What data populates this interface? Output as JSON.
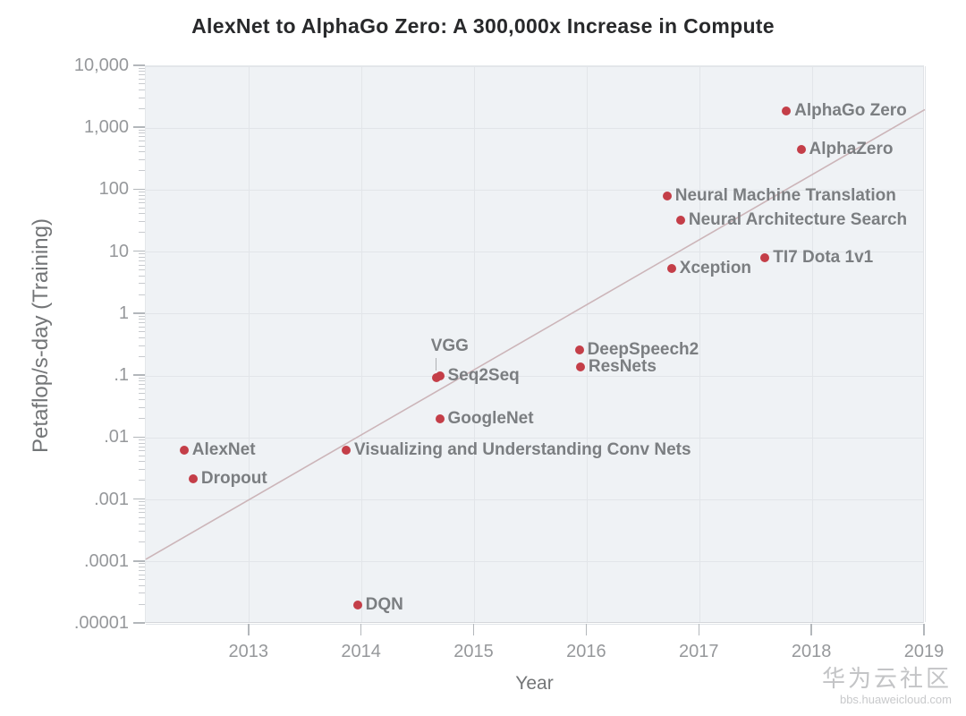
{
  "watermark": {
    "line1": "华为云社区",
    "line2": "bbs.huaweicloud.com"
  },
  "chart_data": {
    "type": "scatter",
    "title": "AlexNet to AlphaGo Zero: A 300,000x Increase in Compute",
    "xlabel": "Year",
    "ylabel": "Petaflop/s-day (Training)",
    "x_range": [
      2012.08,
      2019
    ],
    "x_ticks": [
      2013,
      2014,
      2015,
      2016,
      2017,
      2018,
      2019
    ],
    "y_scale": "log10",
    "y_range": [
      1e-05,
      10000
    ],
    "y_ticks": [
      {
        "label": "10,000",
        "value": 10000
      },
      {
        "label": "1,000",
        "value": 1000
      },
      {
        "label": "100",
        "value": 100
      },
      {
        "label": "10",
        "value": 10
      },
      {
        "label": "1",
        "value": 1
      },
      {
        "label": ".1",
        "value": 0.1
      },
      {
        "label": ".01",
        "value": 0.01
      },
      {
        "label": ".001",
        "value": 0.001
      },
      {
        "label": ".0001",
        "value": 0.0001
      },
      {
        "label": ".00001",
        "value": 1e-05
      }
    ],
    "grid": true,
    "legend": null,
    "points": [
      {
        "label": "AlexNet",
        "year": 2012.42,
        "petaflop_s_days": 0.0063,
        "label_pos": "right"
      },
      {
        "label": "Dropout",
        "year": 2012.5,
        "petaflop_s_days": 0.0022,
        "label_pos": "right"
      },
      {
        "label": "Visualizing and Understanding Conv Nets",
        "year": 2013.86,
        "petaflop_s_days": 0.0063,
        "label_pos": "right"
      },
      {
        "label": "DQN",
        "year": 2013.96,
        "petaflop_s_days": 2e-05,
        "label_pos": "right"
      },
      {
        "label": "VGG",
        "year": 2014.66,
        "petaflop_s_days": 0.095,
        "label_pos": "above"
      },
      {
        "label": "Seq2Seq",
        "year": 2014.69,
        "petaflop_s_days": 0.1,
        "label_pos": "right"
      },
      {
        "label": "GoogleNet",
        "year": 2014.69,
        "petaflop_s_days": 0.02,
        "label_pos": "right"
      },
      {
        "label": "DeepSpeech2",
        "year": 2015.93,
        "petaflop_s_days": 0.26,
        "label_pos": "right"
      },
      {
        "label": "ResNets",
        "year": 2015.94,
        "petaflop_s_days": 0.14,
        "label_pos": "right"
      },
      {
        "label": "Neural Machine Translation",
        "year": 2016.71,
        "petaflop_s_days": 80,
        "label_pos": "right"
      },
      {
        "label": "Neural Architecture Search",
        "year": 2016.83,
        "petaflop_s_days": 33,
        "label_pos": "right"
      },
      {
        "label": "Xception",
        "year": 2016.75,
        "petaflop_s_days": 5.5,
        "label_pos": "right"
      },
      {
        "label": "TI7 Dota 1v1",
        "year": 2017.58,
        "petaflop_s_days": 8,
        "label_pos": "right"
      },
      {
        "label": "AlphaGo Zero",
        "year": 2017.77,
        "petaflop_s_days": 1900,
        "label_pos": "right"
      },
      {
        "label": "AlphaZero",
        "year": 2017.9,
        "petaflop_s_days": 450,
        "label_pos": "right"
      }
    ],
    "trend_line": {
      "start": {
        "year": 2012.08,
        "petaflop_s_days": 0.00011
      },
      "end": {
        "year": 2019,
        "petaflop_s_days": 2000
      }
    },
    "colors": {
      "point": "#c43e48",
      "point_label": "#7b7e81",
      "trend_line": "#ccb5b9",
      "plot_bg": "#eff2f5",
      "gridline": "#e2e5e9",
      "tick_label": "#96989b",
      "axis_title": "#737577",
      "title": "#28292b",
      "watermark": "#c3c4c6"
    }
  }
}
